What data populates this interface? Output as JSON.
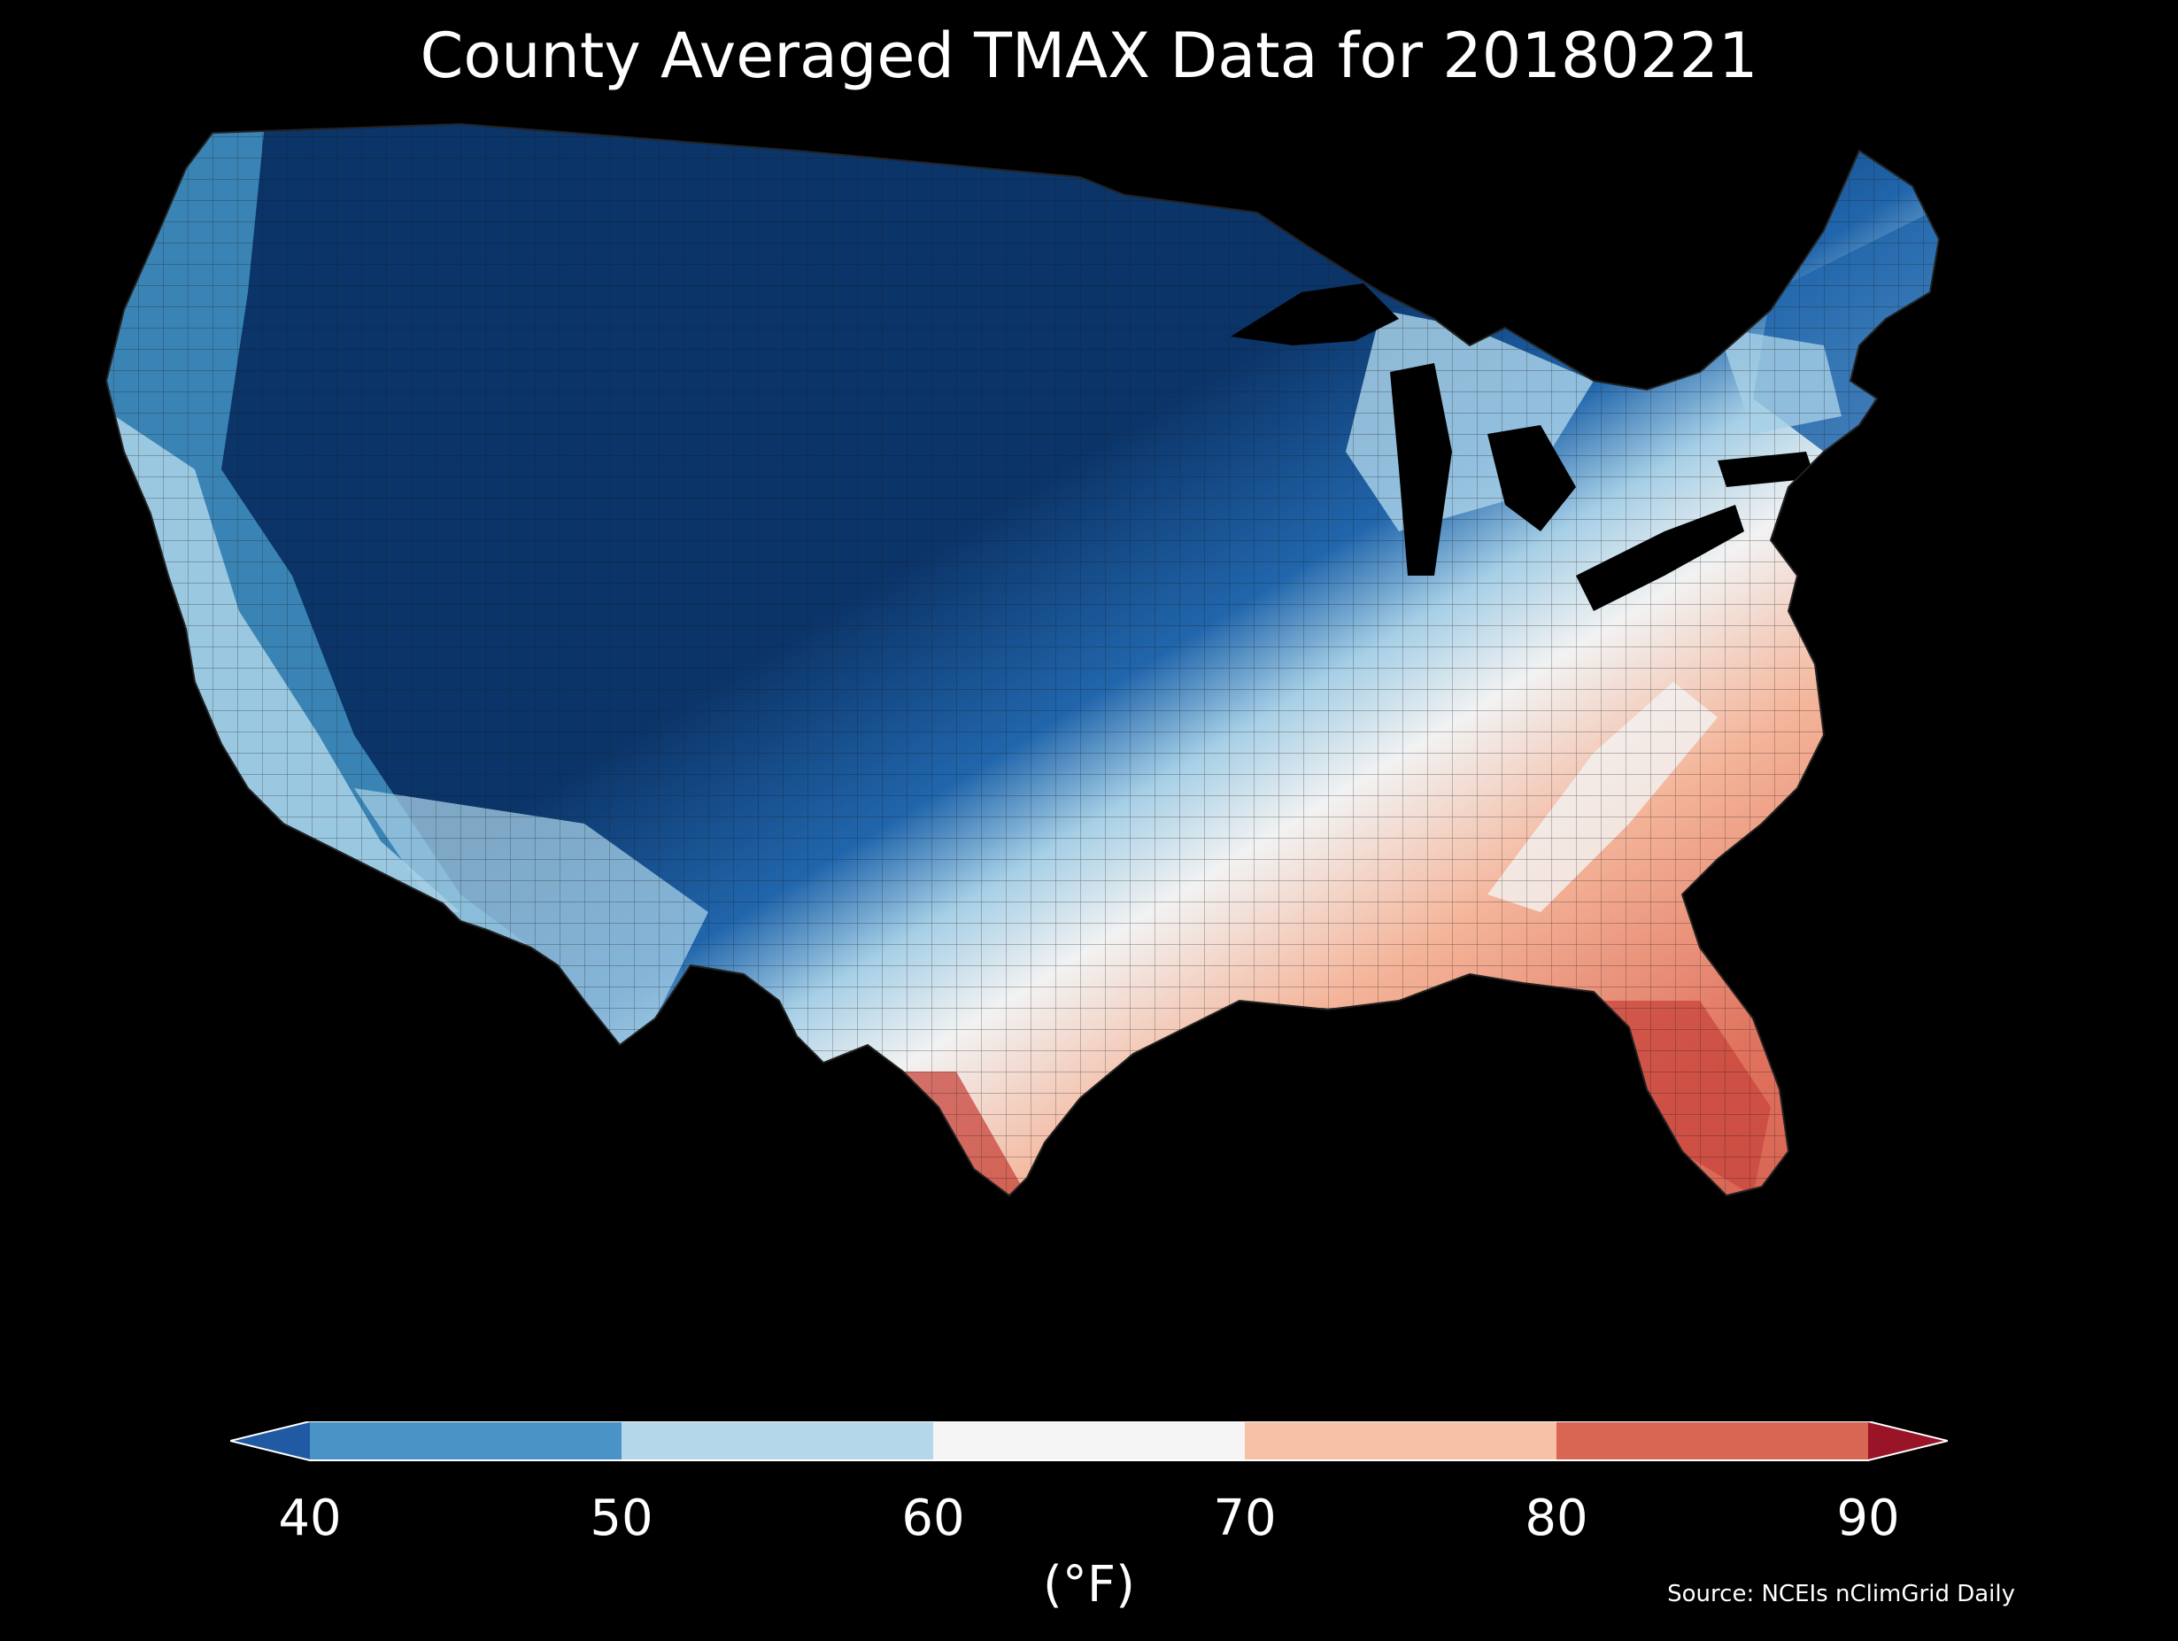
{
  "header": {
    "title": "County Averaged TMAX Data for 20180221"
  },
  "colorbar": {
    "ticks": [
      "40",
      "50",
      "60",
      "70",
      "80",
      "90"
    ],
    "unit": "(°F)",
    "bins": [
      {
        "min": null,
        "max": 40,
        "color": "#1f5aa3"
      },
      {
        "min": 40,
        "max": 50,
        "color": "#4a93c7"
      },
      {
        "min": 50,
        "max": 60,
        "color": "#b5d7ea"
      },
      {
        "min": 60,
        "max": 70,
        "color": "#f5f5f5"
      },
      {
        "min": 70,
        "max": 80,
        "color": "#f7c1a6"
      },
      {
        "min": 80,
        "max": 90,
        "color": "#d96553"
      },
      {
        "min": 90,
        "max": null,
        "color": "#9a1428"
      }
    ]
  },
  "footer": {
    "source": "Source: NCEIs nClimGrid Daily"
  },
  "map_colors": {
    "deep_blue": "#0b3468",
    "blue": "#2166ac",
    "mid_blue": "#4393c3",
    "light_blue": "#a6cfe6",
    "white": "#f2f2f2",
    "light_red": "#f4b59a",
    "red": "#e0735e",
    "dark_red": "#c8463c",
    "background": "#000000"
  }
}
